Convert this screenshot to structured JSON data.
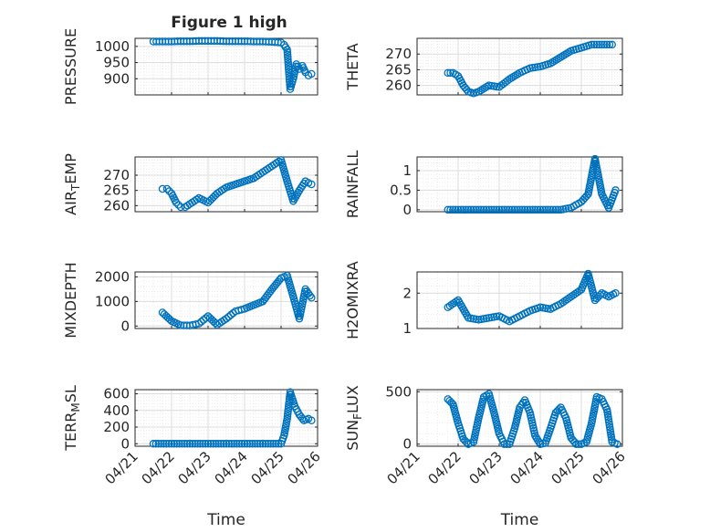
{
  "figure_title": "Figure 1 high",
  "x_label": "Time",
  "x_tick_labels": [
    "04/21",
    "04/22",
    "04/23",
    "04/24",
    "04/25",
    "04/26"
  ],
  "marker_color": "#0072BD",
  "chart_data": [
    {
      "type": "scatter",
      "ylabel": "PRESSURE",
      "xlim": [
        "04/21",
        "04/26"
      ],
      "ylim": [
        850,
        1025
      ],
      "yticks": [
        900,
        950,
        1000
      ],
      "grid": true,
      "x": [
        "04/21 12:00",
        "04/21 18:00",
        "04/22 00:00",
        "04/22 06:00",
        "04/22 12:00",
        "04/22 18:00",
        "04/23 00:00",
        "04/23 06:00",
        "04/23 12:00",
        "04/23 18:00",
        "04/24 00:00",
        "04/24 06:00",
        "04/24 12:00",
        "04/24 18:00",
        "04/25 00:00",
        "04/25 02:00",
        "04/25 04:00",
        "04/25 06:00",
        "04/25 08:00",
        "04/25 10:00",
        "04/25 12:00",
        "04/25 14:00",
        "04/25 16:00",
        "04/25 18:00",
        "04/25 20:00"
      ],
      "values": [
        1015,
        1015,
        1015,
        1016,
        1016,
        1017,
        1017,
        1017,
        1016,
        1016,
        1016,
        1015,
        1015,
        1014,
        1012,
        1005,
        990,
        868,
        900,
        945,
        930,
        940,
        920,
        910,
        915
      ]
    },
    {
      "type": "scatter",
      "ylabel": "THETA",
      "xlim": [
        "04/21",
        "04/26"
      ],
      "ylim": [
        257,
        275
      ],
      "yticks": [
        260,
        265,
        270
      ],
      "grid": true,
      "x": [
        "04/21 18:00",
        "04/21 21:00",
        "04/22 00:00",
        "04/22 03:00",
        "04/22 06:00",
        "04/22 09:00",
        "04/22 12:00",
        "04/22 18:00",
        "04/23 00:00",
        "04/23 06:00",
        "04/23 12:00",
        "04/23 18:00",
        "04/24 00:00",
        "04/24 06:00",
        "04/24 12:00",
        "04/24 18:00",
        "04/25 00:00",
        "04/25 06:00",
        "04/25 12:00",
        "04/25 18:00"
      ],
      "values": [
        264,
        264,
        263,
        260,
        258,
        257.5,
        258,
        260,
        259.5,
        262,
        264,
        265.5,
        266,
        267,
        269,
        271,
        272,
        273,
        273,
        273
      ]
    },
    {
      "type": "scatter",
      "ylabel": "AIR_TEMP",
      "xlim": [
        "04/21",
        "04/26"
      ],
      "ylim": [
        258,
        276
      ],
      "yticks": [
        260,
        265,
        270
      ],
      "grid": true,
      "x": [
        "04/21 18:00",
        "04/21 21:00",
        "04/22 00:00",
        "04/22 03:00",
        "04/22 06:00",
        "04/22 09:00",
        "04/22 12:00",
        "04/22 18:00",
        "04/23 00:00",
        "04/23 06:00",
        "04/23 12:00",
        "04/23 18:00",
        "04/24 00:00",
        "04/24 06:00",
        "04/24 12:00",
        "04/24 18:00",
        "04/25 00:00",
        "04/25 04:00",
        "04/25 08:00",
        "04/25 12:00",
        "04/25 16:00",
        "04/25 20:00"
      ],
      "values": [
        265.5,
        265.5,
        264,
        261,
        259.5,
        259.5,
        260.5,
        262.5,
        261,
        264,
        266,
        267,
        268,
        269,
        271,
        273,
        275,
        268,
        261.5,
        265,
        268,
        267
      ]
    },
    {
      "type": "scatter",
      "ylabel": "RAINFALL",
      "xlim": [
        "04/21",
        "04/26"
      ],
      "ylim": [
        -0.05,
        1.35
      ],
      "yticks": [
        0,
        0.5,
        1
      ],
      "grid": true,
      "x": [
        "04/21 18:00",
        "04/22 06:00",
        "04/22 18:00",
        "04/23 06:00",
        "04/23 18:00",
        "04/24 06:00",
        "04/24 12:00",
        "04/24 18:00",
        "04/25 00:00",
        "04/25 04:00",
        "04/25 08:00",
        "04/25 12:00",
        "04/25 16:00",
        "04/25 20:00"
      ],
      "values": [
        0,
        0,
        0,
        0,
        0,
        0,
        0,
        0.05,
        0.2,
        0.4,
        1.3,
        0.4,
        0.05,
        0.5
      ]
    },
    {
      "type": "scatter",
      "ylabel": "MIXDEPTH",
      "xlim": [
        "04/21",
        "04/26"
      ],
      "ylim": [
        -100,
        2200
      ],
      "yticks": [
        0,
        1000,
        2000
      ],
      "grid": true,
      "x": [
        "04/21 18:00",
        "04/22 00:00",
        "04/22 06:00",
        "04/22 12:00",
        "04/22 18:00",
        "04/23 00:00",
        "04/23 06:00",
        "04/23 12:00",
        "04/23 18:00",
        "04/24 00:00",
        "04/24 06:00",
        "04/24 12:00",
        "04/24 18:00",
        "04/25 00:00",
        "04/25 04:00",
        "04/25 08:00",
        "04/25 12:00",
        "04/25 16:00",
        "04/25 20:00"
      ],
      "values": [
        550,
        200,
        30,
        20,
        100,
        400,
        50,
        300,
        600,
        700,
        850,
        1000,
        1500,
        1950,
        2050,
        1200,
        300,
        1500,
        1150
      ]
    },
    {
      "type": "scatter",
      "ylabel": "H2OMIXRA",
      "xlim": [
        "04/21",
        "04/26"
      ],
      "ylim": [
        1,
        2.6
      ],
      "yticks": [
        1,
        2
      ],
      "grid": true,
      "x": [
        "04/21 18:00",
        "04/22 00:00",
        "04/22 06:00",
        "04/22 12:00",
        "04/22 18:00",
        "04/23 00:00",
        "04/23 06:00",
        "04/23 12:00",
        "04/23 18:00",
        "04/24 00:00",
        "04/24 06:00",
        "04/24 12:00",
        "04/24 18:00",
        "04/25 00:00",
        "04/25 04:00",
        "04/25 08:00",
        "04/25 12:00",
        "04/25 16:00",
        "04/25 20:00"
      ],
      "values": [
        1.6,
        1.8,
        1.3,
        1.25,
        1.3,
        1.35,
        1.2,
        1.35,
        1.5,
        1.6,
        1.55,
        1.7,
        1.9,
        2.1,
        2.55,
        1.8,
        2.0,
        1.9,
        2.0
      ]
    },
    {
      "type": "scatter",
      "ylabel": "TERR_MSL",
      "xlim": [
        "04/21",
        "04/26"
      ],
      "ylim": [
        -30,
        650
      ],
      "yticks": [
        0,
        200,
        400,
        600
      ],
      "grid": true,
      "x": [
        "04/21 12:00",
        "04/22 00:00",
        "04/22 12:00",
        "04/23 00:00",
        "04/23 12:00",
        "04/24 00:00",
        "04/24 12:00",
        "04/25 00:00",
        "04/25 02:00",
        "04/25 04:00",
        "04/25 06:00",
        "04/25 09:00",
        "04/25 12:00",
        "04/25 15:00",
        "04/25 18:00",
        "04/25 20:00"
      ],
      "values": [
        0,
        0,
        0,
        0,
        0,
        0,
        0,
        0,
        100,
        300,
        620,
        450,
        350,
        280,
        300,
        280
      ]
    },
    {
      "type": "scatter",
      "ylabel": "SUN_FLUX",
      "xlim": [
        "04/21",
        "04/26"
      ],
      "ylim": [
        -20,
        520
      ],
      "yticks": [
        0,
        500
      ],
      "grid": true,
      "x": [
        "04/21 18:00",
        "04/21 21:00",
        "04/22 00:00",
        "04/22 03:00",
        "04/22 06:00",
        "04/22 09:00",
        "04/22 12:00",
        "04/22 15:00",
        "04/22 18:00",
        "04/22 21:00",
        "04/23 00:00",
        "04/23 03:00",
        "04/23 06:00",
        "04/23 09:00",
        "04/23 12:00",
        "04/23 15:00",
        "04/23 18:00",
        "04/23 21:00",
        "04/24 00:00",
        "04/24 03:00",
        "04/24 06:00",
        "04/24 09:00",
        "04/24 12:00",
        "04/24 15:00",
        "04/24 18:00",
        "04/24 21:00",
        "04/25 00:00",
        "04/25 03:00",
        "04/25 06:00",
        "04/25 09:00",
        "04/25 12:00",
        "04/25 15:00",
        "04/25 18:00",
        "04/25 21:00"
      ],
      "values": [
        430,
        380,
        200,
        50,
        0,
        20,
        250,
        450,
        480,
        300,
        100,
        0,
        0,
        150,
        350,
        420,
        300,
        80,
        0,
        10,
        150,
        300,
        350,
        250,
        60,
        0,
        0,
        20,
        200,
        450,
        430,
        330,
        20,
        0
      ]
    }
  ]
}
